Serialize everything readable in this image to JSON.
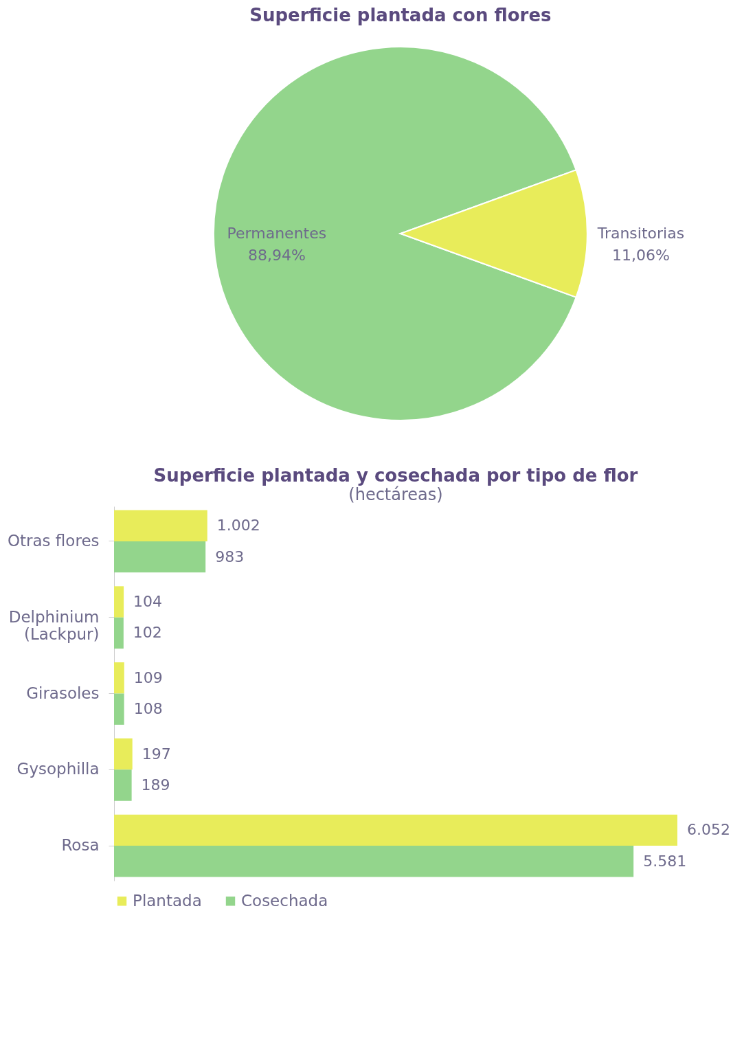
{
  "chart_data": [
    {
      "type": "pie",
      "title": "Superficie plantada con flores",
      "categories": [
        "Permanentes",
        "Transitorias"
      ],
      "values": [
        88.94,
        11.06
      ],
      "colors": [
        "#93d58c",
        "#e8ec5a"
      ],
      "value_labels": [
        "88,94%",
        "11,06%"
      ],
      "legend": false
    },
    {
      "type": "bar",
      "orientation": "horizontal",
      "title": "Superficie plantada y cosechada por tipo de flor",
      "subtitle": "(hectáreas)",
      "categories": [
        "Otras flores",
        "Delphinium (Lackpur)",
        "Girasoles",
        "Gysophilla",
        "Rosa"
      ],
      "series": [
        {
          "name": "Plantada",
          "color": "#e8ec5a",
          "values": [
            1002,
            104,
            109,
            197,
            6052
          ],
          "value_labels": [
            "1.002",
            "104",
            "109",
            "197",
            "6.052"
          ]
        },
        {
          "name": "Cosechada",
          "color": "#93d58c",
          "values": [
            983,
            102,
            108,
            189,
            5581
          ],
          "value_labels": [
            "983",
            "102",
            "108",
            "189",
            "5.581"
          ]
        }
      ],
      "legend": "bottom"
    }
  ]
}
